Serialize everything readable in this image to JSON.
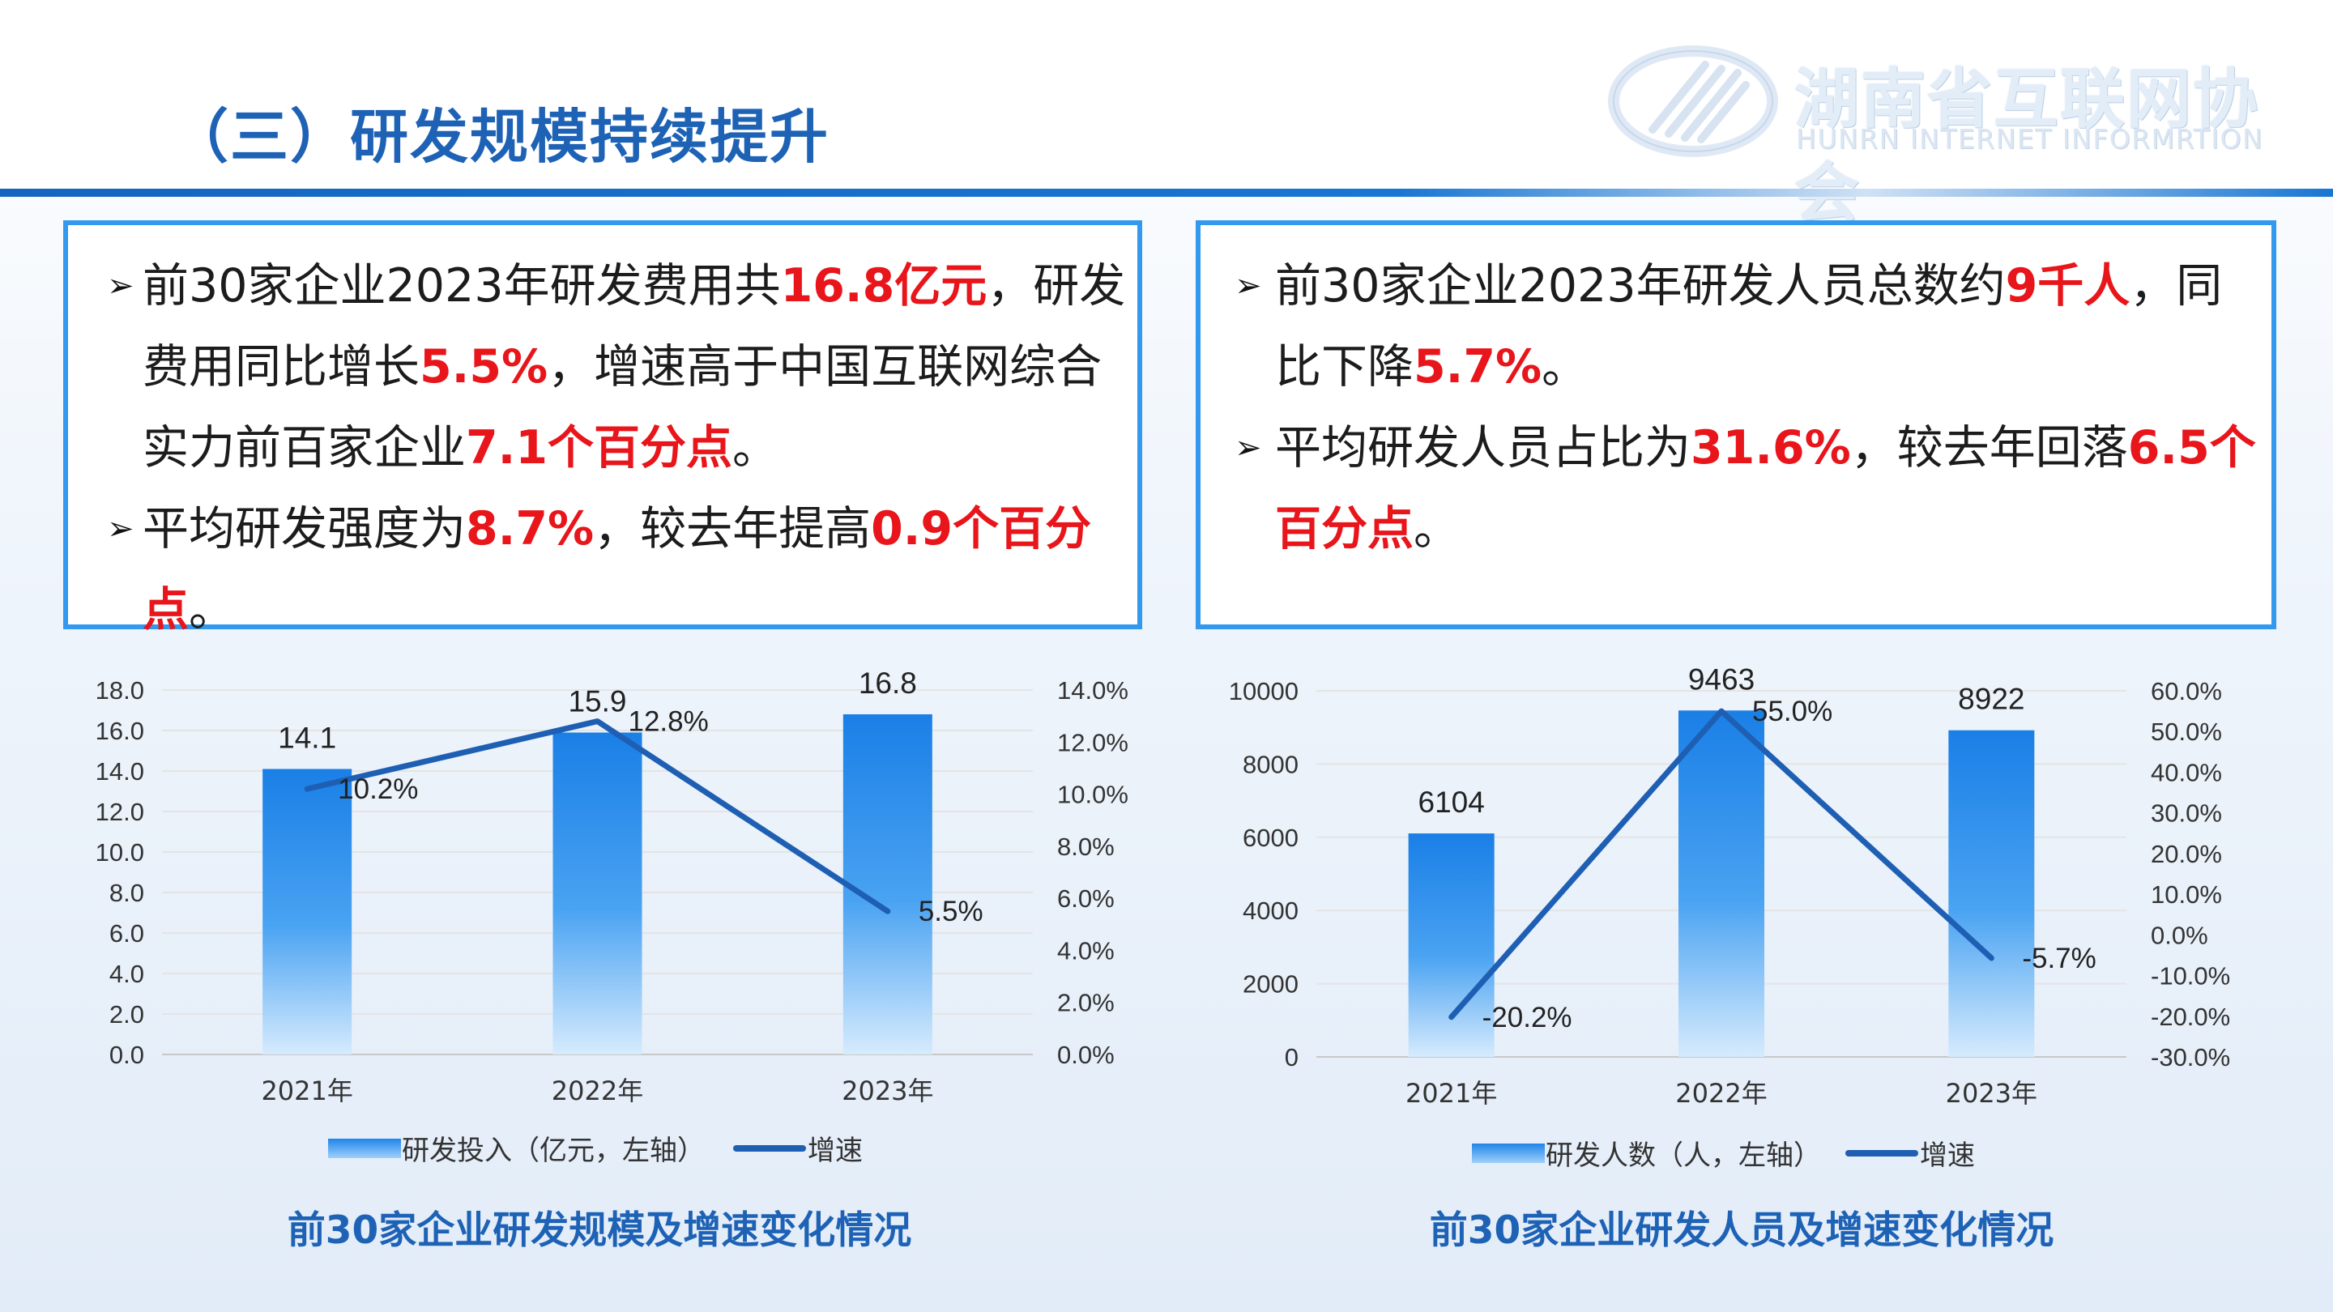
{
  "header": {
    "title": "（三）研发规模持续提升",
    "logo_cn": "湖南省互联网协会",
    "logo_en": "HUNRN INTERNET INFORMRTION"
  },
  "left_box": {
    "bullet1": {
      "line1_a": "前30家企业2023年研发费用共",
      "line1_hl": "16.8亿元",
      "line1_b": "，研发",
      "line2_a": "费用同比增长",
      "line2_hl": "5.5%",
      "line2_b": "，增速高于中国互联网综合",
      "line3_a": "实力前百家企业",
      "line3_hl": "7.1个百分点",
      "line3_b": "。"
    },
    "bullet2": {
      "a": "平均研发强度为",
      "hl1": "8.7%",
      "b": "，较去年提高",
      "hl2": "0.9个百分点",
      "c": "。"
    }
  },
  "right_box": {
    "bullet1": {
      "line1_a": "前30家企业2023年研发人员总数约",
      "line1_hl": "9千人",
      "line1_b": "，同",
      "line2_a": "比下降",
      "line2_hl": "5.7%",
      "line2_b": "。"
    },
    "bullet2": {
      "line1_a": "平均研发人员占比为",
      "line1_hl": "31.6%",
      "line1_b": "，较去年回落",
      "line1_hl2": "6.5个",
      "line2_hl": "百分点",
      "line2_b": "。"
    }
  },
  "colors": {
    "accent": "#1E62B6",
    "highlight": "#E8151B",
    "border": "#3399EE",
    "line": "#1E5FB4"
  },
  "chart_data": [
    {
      "type": "bar",
      "title": "前30家企业研发规模及增速变化情况",
      "categories": [
        "2021年",
        "2022年",
        "2023年"
      ],
      "series": [
        {
          "name": "研发投入（亿元，左轴）",
          "type": "bar",
          "axis": "left",
          "values": [
            14.1,
            15.9,
            16.8
          ],
          "labels": [
            "14.1",
            "15.9",
            "16.8"
          ]
        },
        {
          "name": "增速",
          "type": "line",
          "axis": "right",
          "values": [
            10.2,
            12.8,
            5.5
          ],
          "labels": [
            "10.2%",
            "12.8%",
            "5.5%"
          ]
        }
      ],
      "left_axis": {
        "ylim": [
          0,
          18
        ],
        "ticks": [
          "0.0",
          "2.0",
          "4.0",
          "6.0",
          "8.0",
          "10.0",
          "12.0",
          "14.0",
          "16.0",
          "18.0"
        ]
      },
      "right_axis": {
        "ylim": [
          0,
          14
        ],
        "ticks": [
          "0.0%",
          "2.0%",
          "4.0%",
          "6.0%",
          "8.0%",
          "10.0%",
          "12.0%",
          "14.0%"
        ]
      },
      "grid": true,
      "legend": "bottom"
    },
    {
      "type": "bar",
      "title": "前30家企业研发人员及增速变化情况",
      "categories": [
        "2021年",
        "2022年",
        "2023年"
      ],
      "series": [
        {
          "name": "研发人数（人，左轴）",
          "type": "bar",
          "axis": "left",
          "values": [
            6104,
            9463,
            8922
          ],
          "labels": [
            "6104",
            "9463",
            "8922"
          ]
        },
        {
          "name": "增速",
          "type": "line",
          "axis": "right",
          "values": [
            -20.2,
            55.0,
            -5.7
          ],
          "labels": [
            "-20.2%",
            "55.0%",
            "-5.7%"
          ]
        }
      ],
      "left_axis": {
        "ylim": [
          0,
          10000
        ],
        "ticks": [
          "0",
          "2000",
          "4000",
          "6000",
          "8000",
          "10000"
        ]
      },
      "right_axis": {
        "ylim": [
          -30,
          60
        ],
        "ticks": [
          "-30.0%",
          "-20.0%",
          "-10.0%",
          "0.0%",
          "10.0%",
          "20.0%",
          "30.0%",
          "40.0%",
          "50.0%",
          "60.0%"
        ]
      },
      "grid": true,
      "legend": "bottom"
    }
  ]
}
